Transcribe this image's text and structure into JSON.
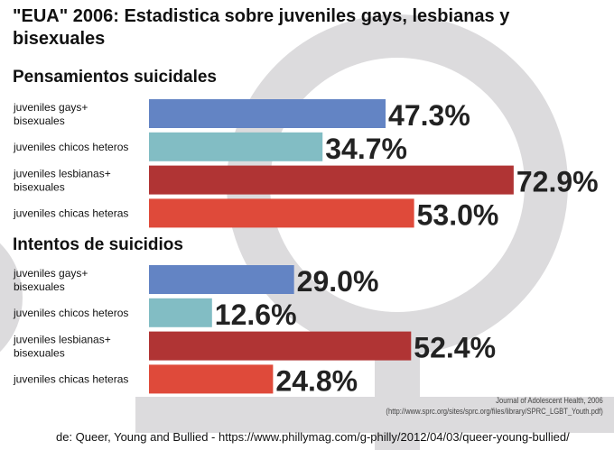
{
  "title": "\"EUA\" 2006: Estadistica sobre juveniles gays, lesbianas y bisexuales",
  "chart_data": [
    {
      "type": "bar",
      "orientation": "horizontal",
      "title": "Pensamientos suicidales",
      "categories": [
        "juveniles gays+ bisexuales",
        "juveniles chicos heteros",
        "juveniles lesbianas+ bisexuales",
        "juveniles chicas heteras"
      ],
      "values": [
        47.3,
        34.7,
        72.9,
        53.0
      ],
      "data_labels": [
        "47.3%",
        "34.7%",
        "72.9%",
        "53.0%"
      ],
      "colors": [
        "#6384c4",
        "#82bdc4",
        "#b03434",
        "#df4a3a"
      ],
      "grid": false
    },
    {
      "type": "bar",
      "orientation": "horizontal",
      "title": "Intentos de suicidios",
      "categories": [
        "juveniles gays+ bisexuales",
        "juveniles chicos heteros",
        "juveniles lesbianas+ bisexuales",
        "juveniles chicas heteras"
      ],
      "values": [
        29.0,
        12.6,
        52.4,
        24.8
      ],
      "data_labels": [
        "29.0%",
        "12.6%",
        "52.4%",
        "24.8%"
      ],
      "colors": [
        "#6384c4",
        "#82bdc4",
        "#b03434",
        "#df4a3a"
      ],
      "grid": false
    }
  ],
  "source": {
    "line1": "Journal of Adolescent Health, 2006",
    "line2": "(http://www.sprc.org/sites/sprc.org/files/library/SPRC_LGBT_Youth.pdf)"
  },
  "credit": "de: Queer, Young and Bullied - https://www.phillymag.com/g-philly/2012/04/03/queer-young-bullied/",
  "background_icon": "female-symbol-icon",
  "background_color": "#dcdbdd"
}
